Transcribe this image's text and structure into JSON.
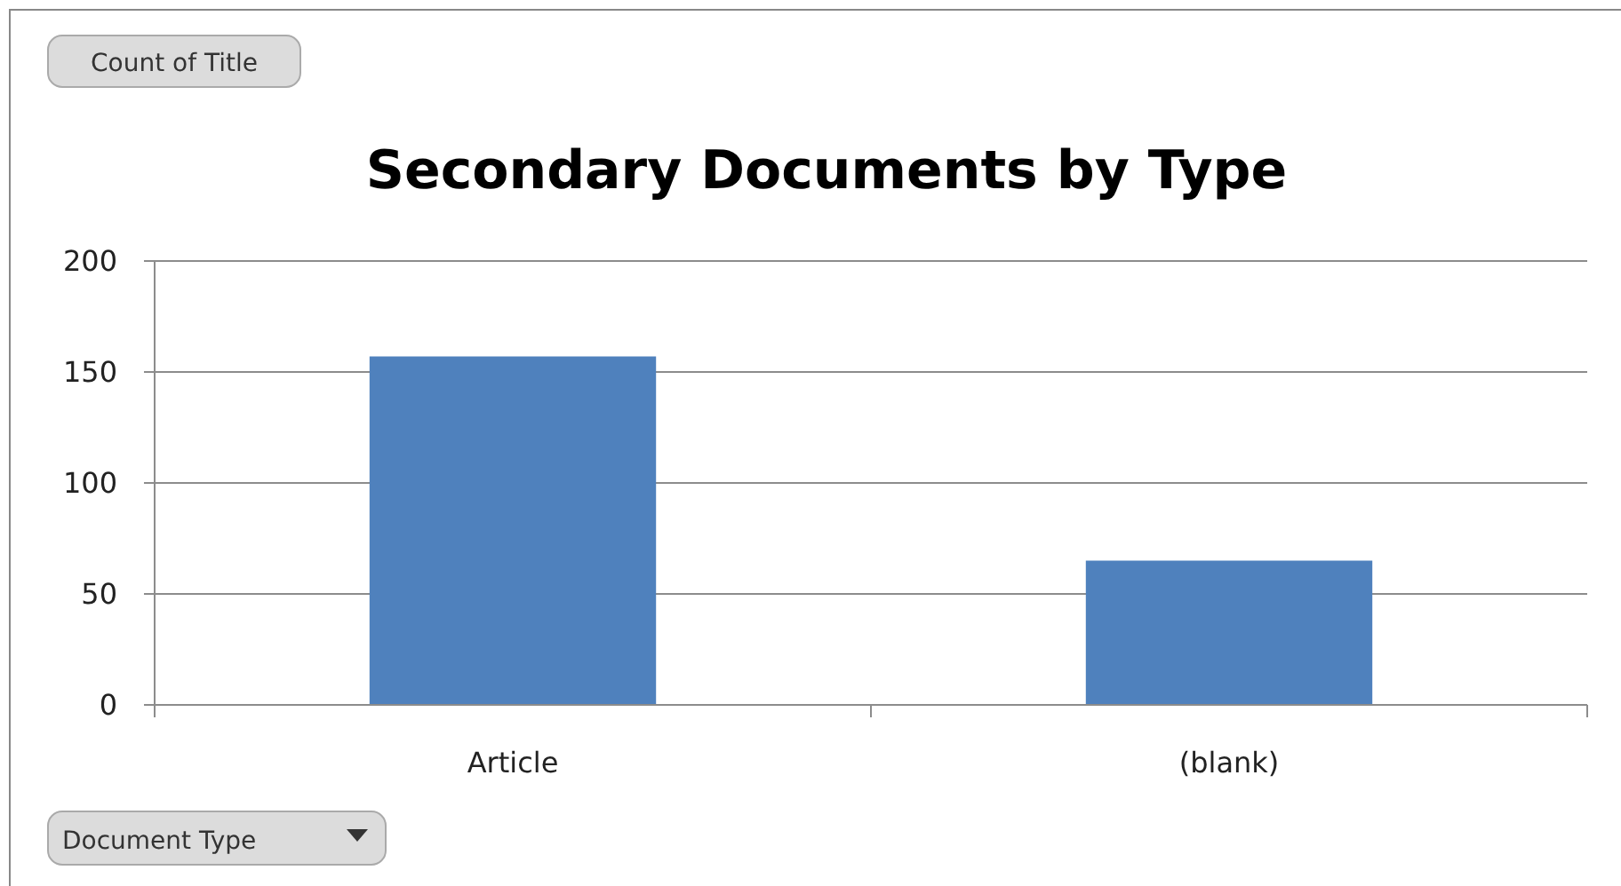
{
  "chart_data": {
    "type": "bar",
    "title": "Secondary Documents by Type",
    "xlabel": "Document Type",
    "annotations": [
      "Count of Title"
    ],
    "categories": [
      "Article",
      "(blank)"
    ],
    "values": [
      157,
      65
    ],
    "color": "#4f81bd",
    "ylim": [
      0,
      200
    ],
    "yticks": [
      0,
      50,
      100,
      150,
      200
    ],
    "grid": "y"
  }
}
